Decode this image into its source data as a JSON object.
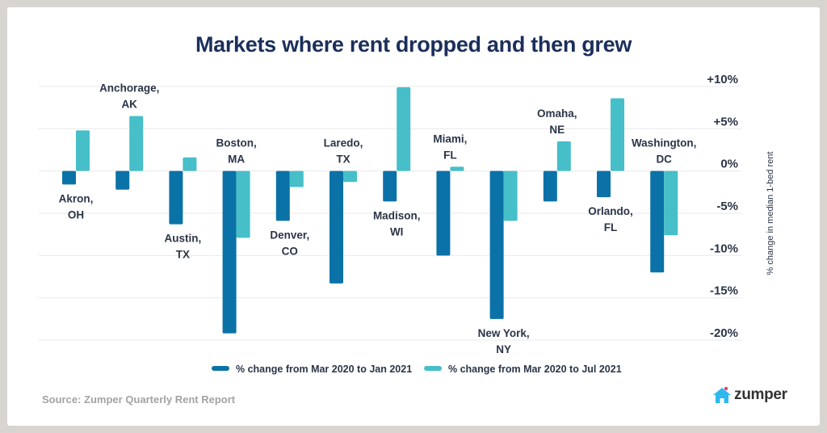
{
  "title": "Markets where rent dropped and then grew",
  "source": "Source: Zumper Quarterly Rent Report",
  "logo": {
    "icon": "house-icon",
    "text": "zumper",
    "icon_color": "#2fb8ee",
    "dot_color": "#ec3b78"
  },
  "colors": {
    "series1": "#0b72a8",
    "series2": "#46bfc9",
    "grid": "#e9e9e9",
    "text": "#2b3548",
    "title": "#1b2f5b"
  },
  "chart_data": {
    "type": "bar",
    "title": "Markets where rent dropped and then grew",
    "xlabel": "",
    "ylabel": "% change in median 1-bed rent",
    "ylim": [
      -20,
      10
    ],
    "yticks": [
      10,
      5,
      0,
      -5,
      -10,
      -15,
      -20
    ],
    "ytick_labels": [
      "+10%",
      "+5%",
      "0%",
      "-5%",
      "-10%",
      "-15%",
      "-20%"
    ],
    "y_axis_side": "right",
    "grid": true,
    "legend_position": "bottom",
    "categories": [
      [
        "Akron,",
        "OH"
      ],
      [
        "Anchorage,",
        "AK"
      ],
      [
        "Austin,",
        "TX"
      ],
      [
        "Boston,",
        "MA"
      ],
      [
        "Denver,",
        "CO"
      ],
      [
        "Laredo,",
        "TX"
      ],
      [
        "Madison,",
        "WI"
      ],
      [
        "Miami,",
        "FL"
      ],
      [
        "New York,",
        "NY"
      ],
      [
        "Omaha,",
        "NE"
      ],
      [
        "Orlando,",
        "FL"
      ],
      [
        "Washington,",
        "DC"
      ]
    ],
    "label_position": [
      "below",
      "above",
      "below",
      "above",
      "below",
      "above",
      "below",
      "above",
      "below",
      "above",
      "below",
      "above"
    ],
    "series": [
      {
        "name": "% change from Mar 2020 to Jan 2021",
        "values": [
          -1.6,
          -2.2,
          -6.3,
          -19.2,
          -5.9,
          -13.3,
          -3.6,
          -10.0,
          -17.5,
          -3.6,
          -3.1,
          -12.0
        ]
      },
      {
        "name": "% change from Mar 2020 to Jul 2021",
        "values": [
          4.8,
          6.5,
          1.6,
          -7.9,
          -1.9,
          -1.3,
          9.9,
          0.5,
          -5.9,
          3.5,
          8.6,
          -7.6
        ]
      }
    ]
  }
}
